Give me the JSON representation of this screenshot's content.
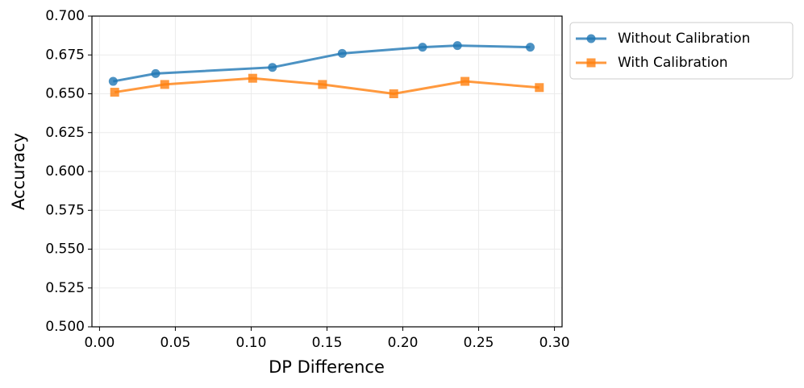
{
  "chart_data": {
    "type": "line",
    "xlabel": "DP Difference",
    "ylabel": "Accuracy",
    "xlim": [
      -0.005,
      0.305
    ],
    "ylim": [
      0.5,
      0.7
    ],
    "xticks": [
      {
        "value": 0,
        "label": "0.00"
      },
      {
        "value": 0.05,
        "label": "0.05"
      },
      {
        "value": 0.1,
        "label": "0.10"
      },
      {
        "value": 0.15,
        "label": "0.15"
      },
      {
        "value": 0.2,
        "label": "0.20"
      },
      {
        "value": 0.25,
        "label": "0.25"
      },
      {
        "value": 0.3,
        "label": "0.30"
      }
    ],
    "yticks": [
      {
        "value": 0.5,
        "label": "0.500"
      },
      {
        "value": 0.525,
        "label": "0.525"
      },
      {
        "value": 0.55,
        "label": "0.550"
      },
      {
        "value": 0.575,
        "label": "0.575"
      },
      {
        "value": 0.6,
        "label": "0.600"
      },
      {
        "value": 0.625,
        "label": "0.625"
      },
      {
        "value": 0.65,
        "label": "0.650"
      },
      {
        "value": 0.675,
        "label": "0.675"
      },
      {
        "value": 0.7,
        "label": "0.700"
      }
    ],
    "grid": true,
    "legend": "outside upper right",
    "series": [
      {
        "name": "Without Calibration",
        "color": "#1f77b4",
        "marker": "circle",
        "x": [
          0.009,
          0.037,
          0.114,
          0.16,
          0.213,
          0.236,
          0.284
        ],
        "values": [
          0.658,
          0.663,
          0.667,
          0.676,
          0.68,
          0.681,
          0.68
        ]
      },
      {
        "name": "With Calibration",
        "color": "#ff7f0e",
        "marker": "square",
        "x": [
          0.01,
          0.043,
          0.101,
          0.147,
          0.194,
          0.241,
          0.29
        ],
        "values": [
          0.651,
          0.656,
          0.66,
          0.656,
          0.65,
          0.658,
          0.654
        ]
      }
    ]
  }
}
